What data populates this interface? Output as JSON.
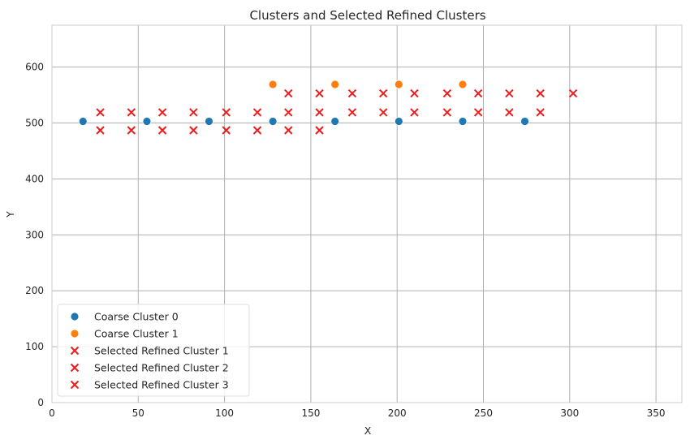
{
  "chart_data": {
    "type": "scatter",
    "title": "Clusters and Selected Refined Clusters",
    "xlabel": "X",
    "ylabel": "Y",
    "xlim": [
      0,
      365
    ],
    "ylim": [
      0,
      675
    ],
    "xticks": [
      0,
      50,
      100,
      150,
      200,
      250,
      300,
      350
    ],
    "yticks": [
      0,
      100,
      200,
      300,
      400,
      500,
      600
    ],
    "grid": true,
    "legend_position": "lower-left",
    "series": [
      {
        "name": "Coarse Cluster 0",
        "marker": "circle",
        "color": "#1f77b4",
        "x": [
          18,
          55,
          91,
          128,
          164,
          201,
          238,
          274
        ],
        "y": [
          503,
          503,
          503,
          503,
          503,
          503,
          503,
          503
        ]
      },
      {
        "name": "Coarse Cluster 1",
        "marker": "circle",
        "color": "#ff7f0e",
        "x": [
          128,
          164,
          201,
          238
        ],
        "y": [
          569,
          569,
          569,
          569
        ]
      },
      {
        "name": "Selected Refined Cluster 1",
        "marker": "x",
        "color": "#ee1c1c",
        "x": [
          28,
          46,
          64,
          82,
          101,
          119,
          137,
          155,
          28,
          46,
          64,
          82,
          101,
          119,
          137,
          155
        ],
        "y": [
          519,
          519,
          519,
          519,
          519,
          519,
          519,
          519,
          487,
          487,
          487,
          487,
          487,
          487,
          487,
          487
        ]
      },
      {
        "name": "Selected Refined Cluster 2",
        "marker": "x",
        "color": "#ee1c1c",
        "x": [
          137,
          155,
          174,
          192,
          210,
          229,
          247,
          265,
          283,
          302
        ],
        "y": [
          553,
          553,
          553,
          553,
          553,
          553,
          553,
          553,
          553,
          553
        ]
      },
      {
        "name": "Selected Refined Cluster 3",
        "marker": "x",
        "color": "#ee1c1c",
        "x": [
          174,
          192,
          210,
          229,
          247,
          265,
          283
        ],
        "y": [
          519,
          519,
          519,
          519,
          519,
          519,
          519
        ]
      }
    ]
  }
}
